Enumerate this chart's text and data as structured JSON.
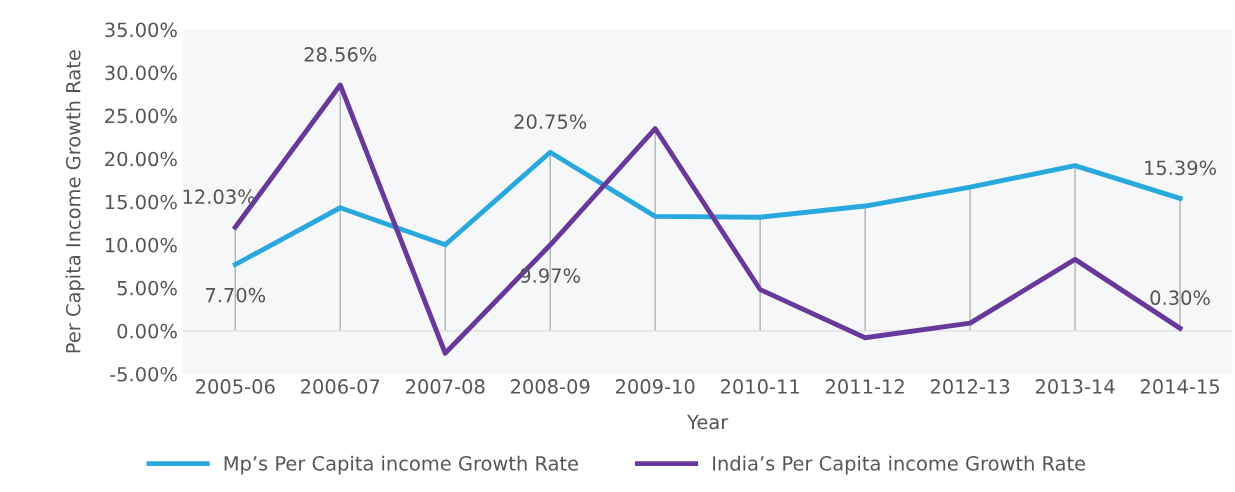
{
  "chart_data": {
    "type": "line",
    "xlabel": "Year",
    "ylabel": "Per Capita Income Growth Rate",
    "categories": [
      "2005-06",
      "2006-07",
      "2007-08",
      "2008-09",
      "2009-10",
      "2010-11",
      "2011-12",
      "2012-13",
      "2013-14",
      "2014-15"
    ],
    "series": [
      {
        "name": "Mp’s Per Capita income Growth Rate",
        "color": "#29a8de",
        "values": [
          7.7,
          14.3,
          10.0,
          20.75,
          13.3,
          13.2,
          14.5,
          16.7,
          19.2,
          15.39
        ],
        "value_labels": [
          "7.70%",
          null,
          null,
          "20.75%",
          null,
          null,
          null,
          null,
          null,
          "15.39%"
        ]
      },
      {
        "name": "India’s Per Capita income Growth Rate",
        "color": "#66399a",
        "values": [
          12.03,
          28.56,
          -2.6,
          9.97,
          23.5,
          4.8,
          -0.8,
          0.9,
          8.3,
          0.3
        ],
        "value_labels": [
          "12.03%",
          "28.56%",
          null,
          "9.97%",
          null,
          null,
          null,
          null,
          null,
          "0.30%"
        ]
      }
    ],
    "ylim": [
      -5,
      35
    ],
    "yticks": [
      {
        "value": -5,
        "label": "-5.00%"
      },
      {
        "value": 0,
        "label": "0.00%"
      },
      {
        "value": 5,
        "label": "5.00%"
      },
      {
        "value": 10,
        "label": "10.00%"
      },
      {
        "value": 15,
        "label": "15.00%"
      },
      {
        "value": 20,
        "label": "20.00%"
      },
      {
        "value": 25,
        "label": "25.00%"
      },
      {
        "value": 30,
        "label": "30.00%"
      },
      {
        "value": 35,
        "label": "35.00%"
      }
    ],
    "grid": "x",
    "legend": "bottom",
    "marker": "none",
    "line_style": "solid"
  }
}
